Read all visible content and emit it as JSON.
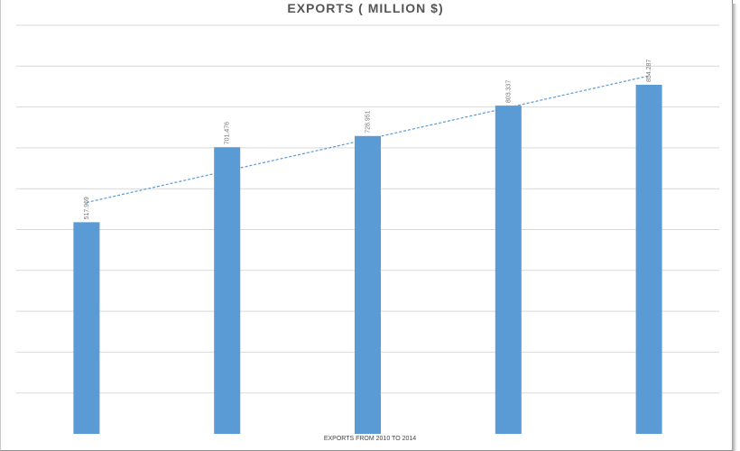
{
  "chart_data": {
    "type": "bar",
    "title": "EXPORTS ( MILLION $)",
    "xlabel": "EXPORTS FROM 2010 TO 2014",
    "ylabel": "",
    "categories": [
      "",
      "",
      "",
      "",
      ""
    ],
    "series": [
      {
        "values": [
          517.969,
          701.476,
          728.951,
          803.337,
          854.287
        ]
      }
    ],
    "data_labels": [
      "517.969",
      "701.476",
      "728.951",
      "803.337",
      "854.287"
    ],
    "ylim": [
      0,
      1000
    ],
    "gridlines": true,
    "trendline": "linear",
    "colors": {
      "bar": "#5b9bd5",
      "trend": "#5b9bd5",
      "grid": "#d9d9d9"
    }
  }
}
